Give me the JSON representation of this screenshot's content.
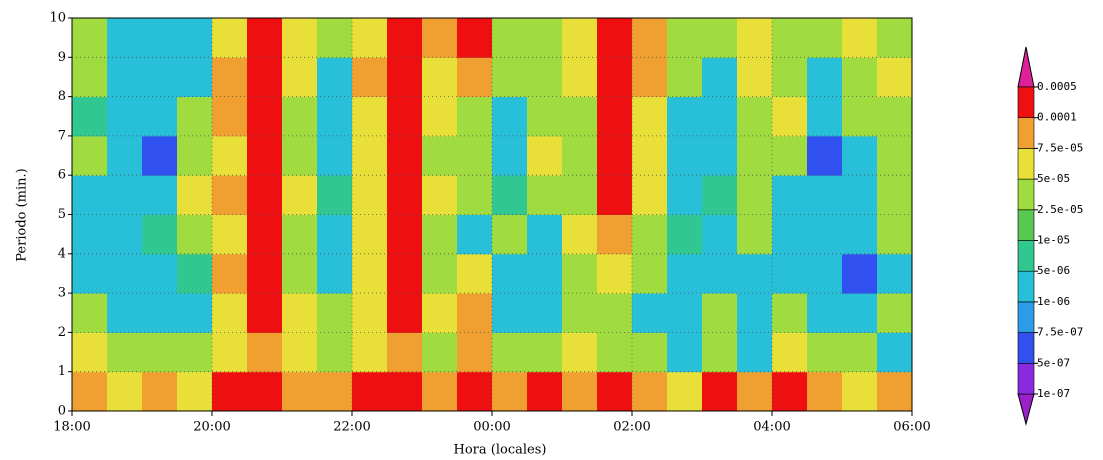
{
  "chart_data": {
    "type": "heatmap",
    "xlabel": "Hora (locales)",
    "ylabel": "Periodo (min.)",
    "xlim": [
      18,
      30
    ],
    "ylim": [
      0,
      10
    ],
    "xticks": [
      {
        "value": 18,
        "label": "18:00"
      },
      {
        "value": 20,
        "label": "20:00"
      },
      {
        "value": 22,
        "label": "22:00"
      },
      {
        "value": 24,
        "label": "00:00"
      },
      {
        "value": 26,
        "label": "02:00"
      },
      {
        "value": 28,
        "label": "04:00"
      },
      {
        "value": 30,
        "label": "06:00"
      }
    ],
    "yticks": [
      0,
      1,
      2,
      3,
      4,
      5,
      6,
      7,
      8,
      9,
      10
    ],
    "grid": true,
    "levels": [
      {
        "value": 1e-07,
        "label": "1e-07"
      },
      {
        "value": 5e-07,
        "label": "5e-07"
      },
      {
        "value": 7.5e-07,
        "label": "7.5e-07"
      },
      {
        "value": 1e-06,
        "label": "1e-06"
      },
      {
        "value": 5e-06,
        "label": "5e-06"
      },
      {
        "value": 1e-05,
        "label": "1e-05"
      },
      {
        "value": 2.5e-05,
        "label": "2.5e-05"
      },
      {
        "value": 5e-05,
        "label": "5e-05"
      },
      {
        "value": 7.5e-05,
        "label": "7.5e-05"
      },
      0.0001,
      0.0005
    ],
    "colors": [
      "#9b20c8",
      "#8a2be2",
      "#3050f0",
      "#2c9ce8",
      "#28c0d8",
      "#30c890",
      "#58c850",
      "#a0dc40",
      "#e8e038",
      "#f0a030",
      "#ee1010",
      "#e0209a"
    ],
    "x": [
      18.25,
      18.75,
      19.25,
      19.75,
      20.25,
      20.75,
      21.25,
      21.75,
      22.25,
      22.75,
      23.25,
      23.75,
      24.25,
      24.75,
      25.25,
      25.75,
      26.25,
      26.75,
      27.25,
      27.75,
      28.25,
      28.75,
      29.25,
      29.75
    ],
    "y": [
      0.5,
      1.5,
      2.5,
      3.5,
      4.5,
      5.5,
      6.5,
      7.5,
      8.5,
      9.5
    ],
    "z": [
      [
        9e-05,
        6e-05,
        9e-05,
        6e-05,
        0.0003,
        0.0003,
        9e-05,
        9e-05,
        0.0003,
        0.0003,
        9e-05,
        0.0003,
        9e-05,
        0.0003,
        9e-05,
        0.0003,
        9e-05,
        6e-05,
        0.0003,
        9e-05,
        0.0003,
        9e-05,
        6e-05,
        9e-05
      ],
      [
        6e-05,
        3e-05,
        3e-05,
        3e-05,
        6e-05,
        9e-05,
        6e-05,
        3e-05,
        6e-05,
        9e-05,
        3e-05,
        9e-05,
        3e-05,
        3e-05,
        6e-05,
        3e-05,
        3e-05,
        3e-06,
        3e-05,
        3e-06,
        6e-05,
        3e-05,
        3e-05,
        3e-06
      ],
      [
        3e-05,
        3e-06,
        3e-06,
        3e-06,
        6e-05,
        0.0003,
        6e-05,
        3e-05,
        6e-05,
        0.0003,
        6e-05,
        9e-05,
        3e-06,
        3e-06,
        3e-05,
        3e-05,
        3e-06,
        3e-06,
        3e-05,
        3e-06,
        3e-05,
        3e-06,
        3e-06,
        3e-05
      ],
      [
        3e-06,
        3e-06,
        3e-06,
        7e-06,
        9e-05,
        0.0003,
        3e-05,
        3e-06,
        6e-05,
        0.0003,
        3e-05,
        6e-05,
        3e-06,
        3e-06,
        3e-05,
        6e-05,
        3e-05,
        3e-06,
        3e-06,
        3e-06,
        3e-06,
        3e-06,
        6e-07,
        3e-06
      ],
      [
        3e-06,
        3e-06,
        7e-06,
        3e-05,
        6e-05,
        0.0003,
        3e-05,
        3e-06,
        6e-05,
        0.0003,
        3e-05,
        3e-06,
        3e-05,
        3e-06,
        6e-05,
        9e-05,
        3e-05,
        7e-06,
        3e-06,
        3e-05,
        3e-06,
        3e-06,
        3e-06,
        3e-05
      ],
      [
        3e-06,
        3e-06,
        3e-06,
        6e-05,
        9e-05,
        0.0003,
        6e-05,
        7e-06,
        6e-05,
        0.0003,
        6e-05,
        3e-05,
        7e-06,
        3e-05,
        3e-05,
        0.0003,
        6e-05,
        3e-06,
        7e-06,
        3e-05,
        3e-06,
        3e-06,
        3e-06,
        3e-05
      ],
      [
        3e-05,
        3e-06,
        6e-07,
        3e-05,
        6e-05,
        0.0003,
        3e-05,
        3e-06,
        6e-05,
        0.0003,
        3e-05,
        3e-05,
        3e-06,
        6e-05,
        3e-05,
        0.0003,
        6e-05,
        3e-06,
        3e-06,
        3e-05,
        3e-05,
        6e-07,
        3e-06,
        3e-05
      ],
      [
        7e-06,
        3e-06,
        3e-06,
        3e-05,
        9e-05,
        0.0003,
        3e-05,
        3e-06,
        6e-05,
        0.0003,
        6e-05,
        3e-05,
        3e-06,
        3e-05,
        3e-05,
        0.0003,
        6e-05,
        3e-06,
        3e-06,
        3e-05,
        6e-05,
        3e-06,
        3e-05,
        3e-05
      ],
      [
        3e-05,
        3e-06,
        3e-06,
        3e-06,
        9e-05,
        0.0003,
        6e-05,
        3e-06,
        9e-05,
        0.0003,
        6e-05,
        9e-05,
        3e-05,
        3e-05,
        6e-05,
        0.0003,
        9e-05,
        3e-05,
        3e-06,
        6e-05,
        3e-05,
        3e-06,
        3e-05,
        6e-05
      ],
      [
        3e-05,
        3e-06,
        3e-06,
        3e-06,
        6e-05,
        0.0003,
        6e-05,
        3e-05,
        6e-05,
        0.0003,
        9e-05,
        0.0003,
        3e-05,
        3e-05,
        6e-05,
        0.0003,
        9e-05,
        3e-05,
        3e-05,
        6e-05,
        3e-05,
        3e-05,
        6e-05,
        3e-05
      ]
    ]
  }
}
